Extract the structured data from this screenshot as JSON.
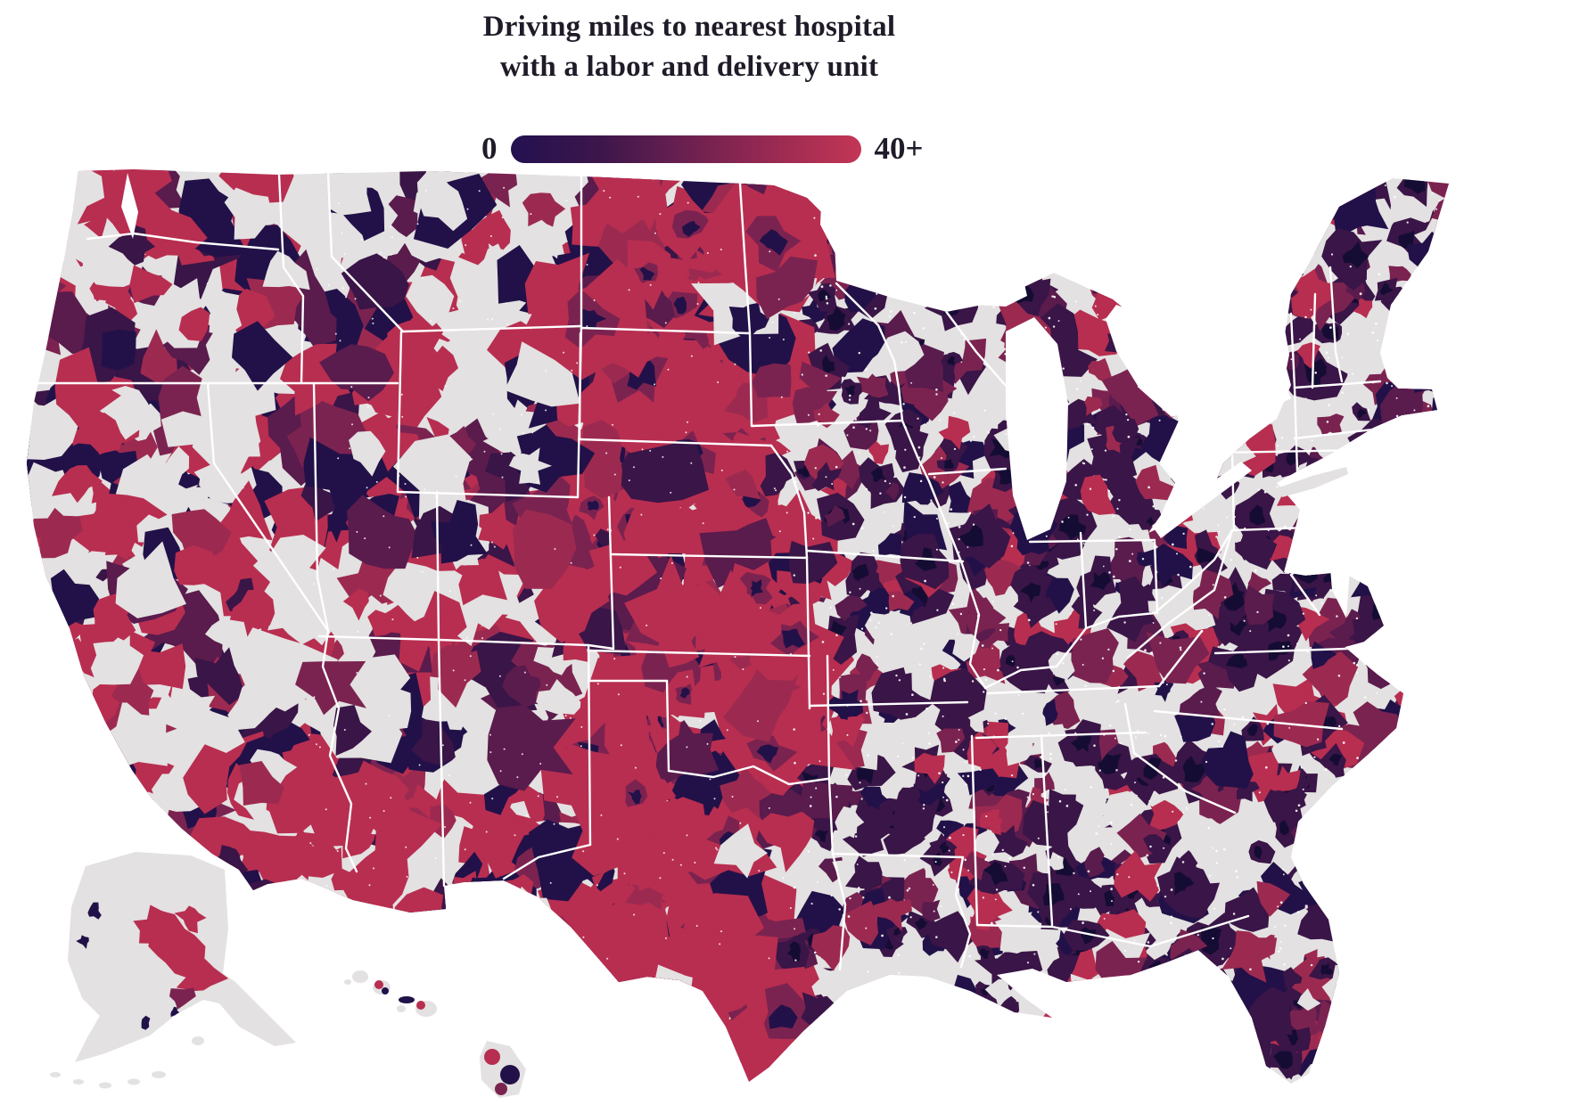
{
  "title": {
    "line1": "Driving miles to nearest hospital",
    "line2": "with a labor and delivery unit"
  },
  "legend": {
    "min_label": "0",
    "max_label": "40+",
    "start_color": "#231150",
    "mid_colors": [
      "#3c164b",
      "#6b2050",
      "#9a2a52"
    ],
    "end_color": "#c33655"
  },
  "map": {
    "region": "United States",
    "insets": [
      "Alaska",
      "Hawaii"
    ],
    "metric": "Driving miles to nearest hospital with a labor and delivery unit",
    "scale_min": 0,
    "scale_max": "40+",
    "background_color": "#ffffff",
    "no_data_color": "#e3e1e1",
    "state_border_color": "#ffffff",
    "palette": {
      "crimson": "#b82e50",
      "red_dark": "#9c2a50",
      "plum": "#7b2350",
      "purple": "#5a1b4d",
      "dark_purple": "#3a1547",
      "navy": "#221148",
      "navy_deep": "#150c33",
      "gray": "#e3e1e1"
    }
  }
}
